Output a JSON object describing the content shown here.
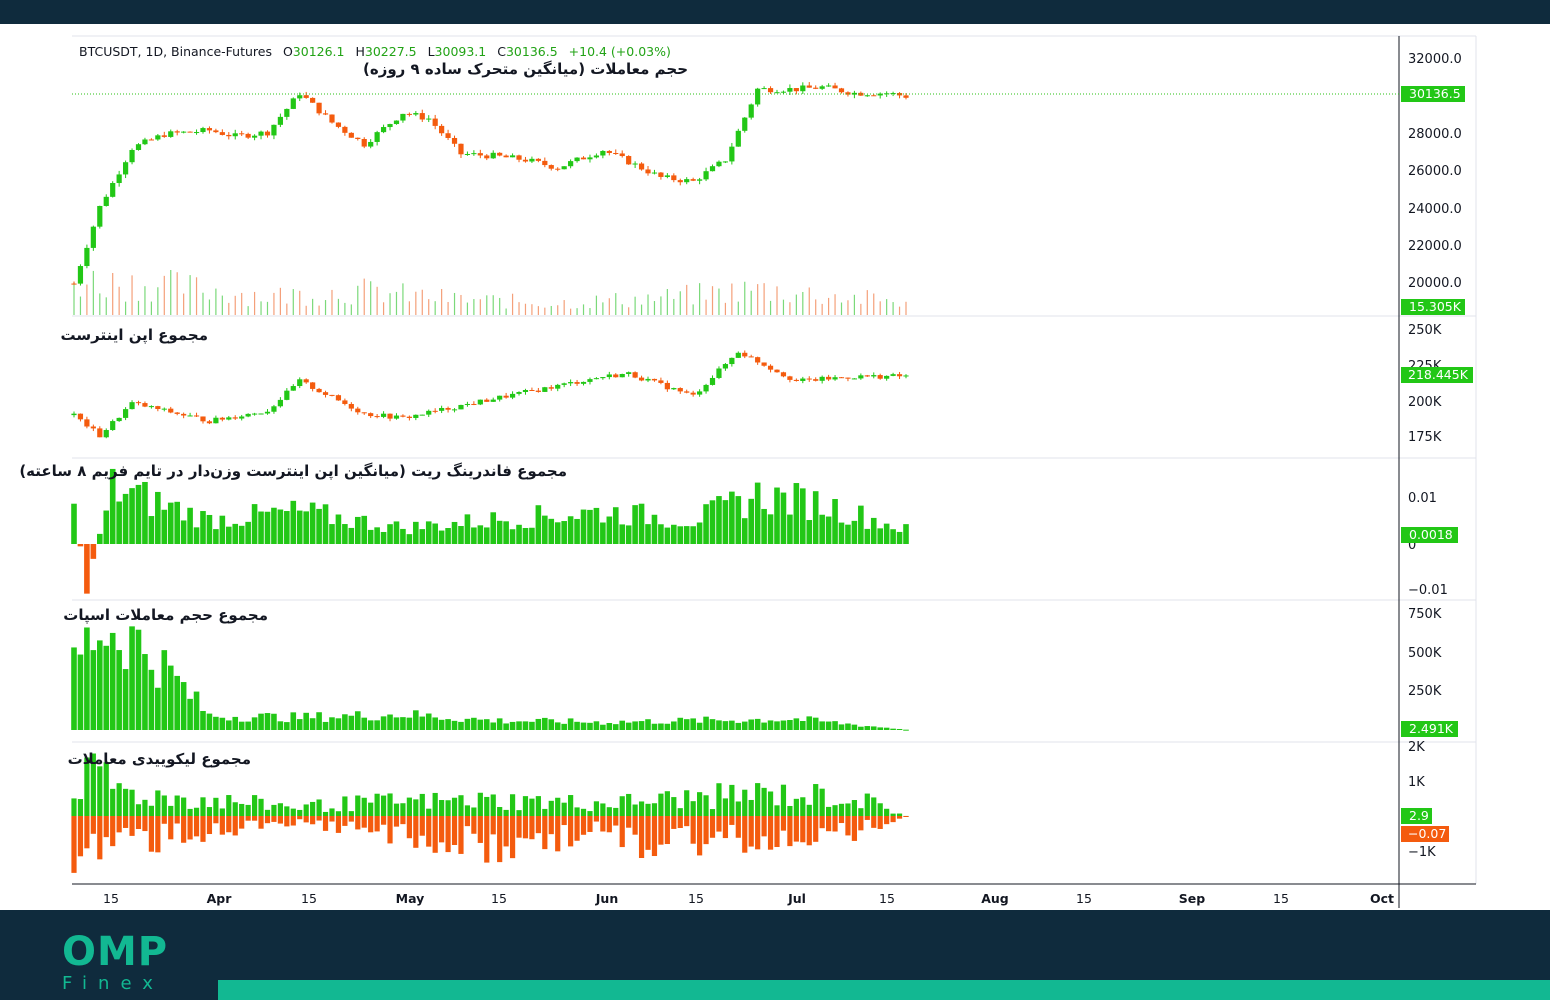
{
  "header": {
    "symbol": "BTCUSDT, 1D, Binance-Futures",
    "o_label": "O",
    "o_value": "30126.1",
    "h_label": "H",
    "h_value": "30227.5",
    "l_label": "L",
    "l_value": "30093.1",
    "c_label": "C",
    "c_value": "30136.5",
    "change": "+10.4 (+0.03%)"
  },
  "panes": {
    "price_title": "حجم معاملات (میانگین متحرک ساده ۹ روزه)",
    "oi_title": "مجموع اپن اینترست",
    "funding_title": "مجموع فاندرینگ ریت (میانگین اپن اینترست وزن‌دار در تایم فریم ۸ ساعته)",
    "spot_title": "مجموع حجم معاملات اسپات",
    "liq_title": "مجموع لیکوییدی معاملات"
  },
  "badges": {
    "price": "30136.5",
    "volume": "15.305K",
    "oi": "218.445K",
    "funding": "0.0018",
    "spot": "2.491K",
    "liq_long": "2.9",
    "liq_short": "−0.07"
  },
  "axes": {
    "price_ticks": [
      "32000.0",
      "28000.0",
      "26000.0",
      "24000.0",
      "22000.0",
      "20000.0"
    ],
    "oi_ticks": [
      "250K",
      "225K",
      "200K",
      "175K"
    ],
    "funding_ticks": [
      "0.01",
      "0",
      "−0.01"
    ],
    "spot_ticks": [
      "750K",
      "500K",
      "250K"
    ],
    "liq_ticks": [
      "2K",
      "1K",
      "−1K"
    ],
    "x_ticks": [
      "15",
      "Apr",
      "15",
      "May",
      "15",
      "Jun",
      "15",
      "Jul",
      "15",
      "Aug",
      "15",
      "Sep",
      "15",
      "Oct"
    ]
  },
  "brand": {
    "logo_top": "OMP",
    "logo_bottom": "Finex"
  },
  "colors": {
    "up": "#22c716",
    "down": "#f45b0e",
    "last_price_line": "#2bc016",
    "footer_bg": "#0f2b3d",
    "accent": "#12b892"
  },
  "chart_data": [
    {
      "type": "candlestick",
      "title": "BTCUSDT, 1D, Binance-Futures",
      "x_range": [
        "2023-03-11",
        "2023-10-01"
      ],
      "x": [
        "Mar 11",
        "Mar 15",
        "Mar 20",
        "Mar 25",
        "Apr 01",
        "Apr 05",
        "Apr 10",
        "Apr 15",
        "Apr 20",
        "Apr 25",
        "May 01",
        "May 05",
        "May 10",
        "May 15",
        "May 20",
        "May 25",
        "Jun 01",
        "Jun 05",
        "Jun 10",
        "Jun 15",
        "Jun 20",
        "Jun 25",
        "Jul 01",
        "Jul 05",
        "Jul 10",
        "Jul 15",
        "Jul 18"
      ],
      "close": [
        20600,
        24500,
        27500,
        28200,
        28400,
        28100,
        28300,
        30300,
        28800,
        27700,
        29300,
        29000,
        27200,
        27100,
        26900,
        26500,
        27400,
        26800,
        26000,
        25800,
        26900,
        30500,
        30500,
        30600,
        30300,
        30300,
        30136.5
      ],
      "ylim": [
        19000,
        33000
      ],
      "last": {
        "open": 30126.1,
        "high": 30227.5,
        "low": 30093.1,
        "close": 30136.5,
        "change": 10.4,
        "change_pct": 0.03
      }
    },
    {
      "type": "bar",
      "title": "حجم معاملات (میانگین متحرک ساده ۹ روزه)",
      "x": [
        "Mar 11",
        "Mar 25",
        "Apr 10",
        "Apr 25",
        "May 10",
        "May 25",
        "Jun 10",
        "Jun 25",
        "Jul 10",
        "Jul 18"
      ],
      "values_k": [
        40,
        35,
        22,
        28,
        18,
        14,
        20,
        30,
        20,
        15.305
      ]
    },
    {
      "type": "candlestick",
      "title": "مجموع اپن اینترست",
      "x": [
        "Mar 11",
        "Mar 15",
        "Mar 20",
        "Apr 01",
        "Apr 10",
        "Apr 15",
        "Apr 25",
        "May 01",
        "May 15",
        "Jun 01",
        "Jun 05",
        "Jun 15",
        "Jun 22",
        "Jul 01",
        "Jul 10",
        "Jul 18"
      ],
      "close_k": [
        192,
        178,
        200,
        188,
        195,
        215,
        193,
        190,
        203,
        218,
        220,
        205,
        235,
        215,
        218,
        218.445
      ],
      "ylim_k": [
        165,
        255
      ]
    },
    {
      "type": "bar",
      "title": "مجموع فاندرینگ ریت (میانگین اپن اینترست وزن‌دار در تایم فریم ۸ ساعته)",
      "x": [
        "Mar 11",
        "Mar 13",
        "Mar 17",
        "Apr 01",
        "Apr 15",
        "May 01",
        "May 15",
        "Jun 01",
        "Jun 15",
        "Jun 25",
        "Jul 05",
        "Jul 18"
      ],
      "values": [
        0.004,
        -0.005,
        0.007,
        0.003,
        0.004,
        0.002,
        0.003,
        0.004,
        0.003,
        0.006,
        0.005,
        0.0018
      ],
      "ylim": [
        -0.012,
        0.012
      ]
    },
    {
      "type": "bar",
      "title": "مجموع حجم معاملات اسپات",
      "x": [
        "Mar 11",
        "Mar 15",
        "Mar 20",
        "Mar 25",
        "Apr 01",
        "Apr 15",
        "May 01",
        "May 15",
        "Jun 01",
        "Jun 15",
        "Jul 01",
        "Jul 18"
      ],
      "values_k": [
        450,
        650,
        580,
        400,
        90,
        80,
        100,
        60,
        50,
        60,
        70,
        2.491
      ],
      "ylim_k": [
        0,
        800
      ]
    },
    {
      "type": "bar",
      "title": "مجموع لیکوییدی معاملات",
      "series": [
        {
          "values": [
            1050,
            1250,
            700,
            500,
            300,
            450,
            500,
            400,
            450,
            700,
            600,
            2.9
          ]
        },
        {
          "values": [
            -1200,
            -1000,
            -800,
            -500,
            -300,
            -500,
            -1100,
            -400,
            -1000,
            -700,
            -500,
            -0.07
          ]
        }
      ],
      "x": [
        "Mar 11",
        "Mar 15",
        "Mar 20",
        "Apr 01",
        "Apr 15",
        "Apr 28",
        "May 15",
        "Jun 01",
        "Jun 05",
        "Jun 25",
        "Jul 10",
        "Jul 18"
      ],
      "ylim": [
        -1600,
        2000
      ]
    }
  ]
}
